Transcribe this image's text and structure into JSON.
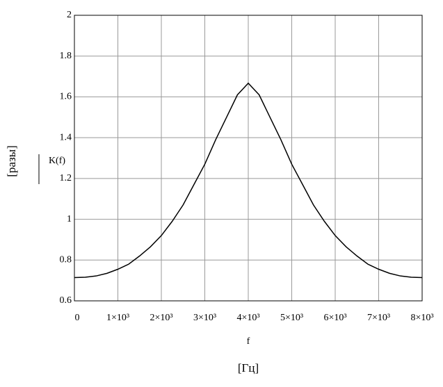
{
  "chart_data": {
    "type": "line",
    "x": [
      0,
      250,
      500,
      750,
      1000,
      1250,
      1500,
      1750,
      2000,
      2250,
      2500,
      2750,
      3000,
      3250,
      3500,
      3750,
      4000,
      4250,
      4500,
      4750,
      5000,
      5250,
      5500,
      5750,
      6000,
      6250,
      6500,
      6750,
      7000,
      7250,
      7500,
      7750,
      8000
    ],
    "values": [
      0.714,
      0.716,
      0.722,
      0.735,
      0.755,
      0.78,
      0.82,
      0.865,
      0.92,
      0.99,
      1.07,
      1.17,
      1.27,
      1.39,
      1.5,
      1.61,
      1.667,
      1.61,
      1.5,
      1.39,
      1.27,
      1.17,
      1.07,
      0.99,
      0.92,
      0.865,
      0.82,
      0.78,
      0.755,
      0.735,
      0.722,
      0.716,
      0.714
    ],
    "color": "#000000",
    "xlim": [
      0,
      8000
    ],
    "xticks": [
      0,
      {
        "value": 1000,
        "label": "1×10³"
      },
      {
        "value": 2000,
        "label": "2×10³"
      },
      {
        "value": 3000,
        "label": "3×10³"
      },
      {
        "value": 4000,
        "label": "4×10³"
      },
      {
        "value": 5000,
        "label": "5×10³"
      },
      {
        "value": 6000,
        "label": "6×10³"
      },
      {
        "value": 7000,
        "label": "7×10³"
      },
      {
        "value": 8000,
        "label": "8×10³"
      }
    ],
    "ylim": [
      0.6,
      2
    ],
    "yticks": [
      0.6,
      0.8,
      1,
      1.2,
      1.4,
      1.6,
      1.8,
      2
    ],
    "grid": true,
    "y_label": "K(f)",
    "y_unit": "[разы]",
    "x_label": "f",
    "x_unit": "[Гц]"
  }
}
